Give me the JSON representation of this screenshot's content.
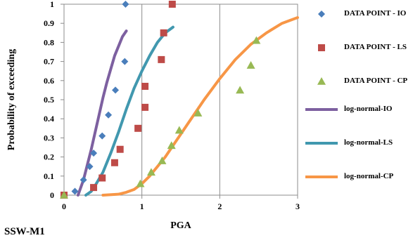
{
  "chart_data": {
    "type": "scatter",
    "title": "",
    "xlabel": "PGA",
    "ylabel": "Probability of exceeding",
    "xlim": [
      0,
      3
    ],
    "ylim": [
      0,
      1
    ],
    "x_ticks": [
      "0",
      "1",
      "2",
      "3"
    ],
    "y_ticks": [
      "0",
      "0.1",
      "0.2",
      "0.3",
      "0.4",
      "0.5",
      "0.6",
      "0.7",
      "0.8",
      "0.9",
      "1"
    ],
    "grid": "vertical",
    "legend_position": "right",
    "series": [
      {
        "name": "DATA POINT - IO",
        "kind": "scatter",
        "marker": "diamond",
        "color": "#4a7ebb",
        "x": [
          0.0,
          0.14,
          0.25,
          0.33,
          0.38,
          0.49,
          0.57,
          0.66,
          0.78,
          0.79
        ],
        "y": [
          0.0,
          0.02,
          0.08,
          0.15,
          0.22,
          0.31,
          0.42,
          0.55,
          0.7,
          1.0
        ]
      },
      {
        "name": "DATA POINT - LS",
        "kind": "scatter",
        "marker": "square",
        "color": "#be4b48",
        "x": [
          0.0,
          0.38,
          0.49,
          0.65,
          0.72,
          0.95,
          1.04,
          1.04,
          1.25,
          1.28,
          1.39
        ],
        "y": [
          0.0,
          0.04,
          0.09,
          0.17,
          0.24,
          0.35,
          0.46,
          0.57,
          0.71,
          0.85,
          1.0
        ]
      },
      {
        "name": "DATA POINT - CP",
        "kind": "scatter",
        "marker": "triangle",
        "color": "#98b954",
        "x": [
          0.0,
          0.98,
          1.12,
          1.26,
          1.38,
          1.48,
          1.72,
          2.26,
          2.4,
          2.47
        ],
        "y": [
          0.0,
          0.06,
          0.12,
          0.18,
          0.26,
          0.34,
          0.43,
          0.55,
          0.68,
          0.81
        ]
      },
      {
        "name": "log-normal-IO",
        "kind": "line",
        "color": "#7d60a0",
        "x": [
          0.18,
          0.25,
          0.3,
          0.35,
          0.4,
          0.45,
          0.5,
          0.55,
          0.6,
          0.65,
          0.7,
          0.75,
          0.8
        ],
        "y": [
          0.0,
          0.08,
          0.16,
          0.24,
          0.33,
          0.42,
          0.51,
          0.59,
          0.66,
          0.73,
          0.78,
          0.83,
          0.86
        ]
      },
      {
        "name": "log-normal-LS",
        "kind": "line",
        "color": "#4198af",
        "x": [
          0.28,
          0.35,
          0.4,
          0.5,
          0.6,
          0.7,
          0.8,
          0.9,
          1.0,
          1.1,
          1.2,
          1.3,
          1.4
        ],
        "y": [
          0.0,
          0.02,
          0.05,
          0.12,
          0.22,
          0.33,
          0.45,
          0.56,
          0.65,
          0.73,
          0.8,
          0.85,
          0.88
        ]
      },
      {
        "name": "log-normal-CP",
        "kind": "line",
        "color": "#f79646",
        "x": [
          0.5,
          0.7,
          0.8,
          0.9,
          1.0,
          1.1,
          1.2,
          1.3,
          1.4,
          1.5,
          1.6,
          1.8,
          2.0,
          2.2,
          2.4,
          2.6,
          2.8,
          3.0
        ],
        "y": [
          0.0,
          0.005,
          0.015,
          0.03,
          0.06,
          0.1,
          0.15,
          0.2,
          0.26,
          0.32,
          0.38,
          0.5,
          0.61,
          0.71,
          0.79,
          0.85,
          0.9,
          0.93
        ]
      }
    ]
  },
  "footer": {
    "label": "SSW-M1"
  }
}
